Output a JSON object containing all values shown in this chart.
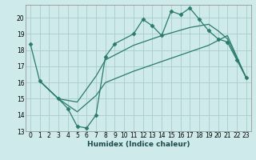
{
  "xlabel": "Humidex (Indice chaleur)",
  "bg_color": "#ceeaea",
  "grid_color": "#a8cccc",
  "line_color": "#2a7a6a",
  "xlim": [
    -0.5,
    23.5
  ],
  "ylim": [
    13,
    20.8
  ],
  "yticks": [
    13,
    14,
    15,
    16,
    17,
    18,
    19,
    20
  ],
  "xticks": [
    0,
    1,
    2,
    3,
    4,
    5,
    6,
    7,
    8,
    9,
    10,
    11,
    12,
    13,
    14,
    15,
    16,
    17,
    18,
    19,
    20,
    21,
    22,
    23
  ],
  "line1_x": [
    0,
    1,
    3,
    4,
    5,
    6,
    7,
    8,
    9,
    11,
    12,
    13,
    14,
    15,
    16,
    17,
    18,
    19,
    20,
    21,
    22,
    23
  ],
  "line1_y": [
    18.4,
    16.1,
    15.0,
    14.4,
    13.3,
    13.2,
    14.0,
    17.6,
    18.4,
    19.0,
    19.9,
    19.5,
    18.9,
    20.4,
    20.2,
    20.6,
    19.9,
    19.2,
    18.7,
    18.5,
    17.4,
    16.3
  ],
  "line2_x": [
    1,
    3,
    5,
    7,
    8,
    11,
    14,
    17,
    19,
    20,
    21,
    23
  ],
  "line2_y": [
    16.1,
    15.0,
    14.8,
    16.4,
    17.4,
    18.3,
    18.9,
    19.4,
    19.6,
    19.2,
    18.7,
    16.3
  ],
  "line3_x": [
    1,
    3,
    5,
    7,
    8,
    11,
    14,
    17,
    19,
    21,
    23
  ],
  "line3_y": [
    16.1,
    15.0,
    14.2,
    15.2,
    16.0,
    16.7,
    17.3,
    17.9,
    18.3,
    18.9,
    16.3
  ]
}
